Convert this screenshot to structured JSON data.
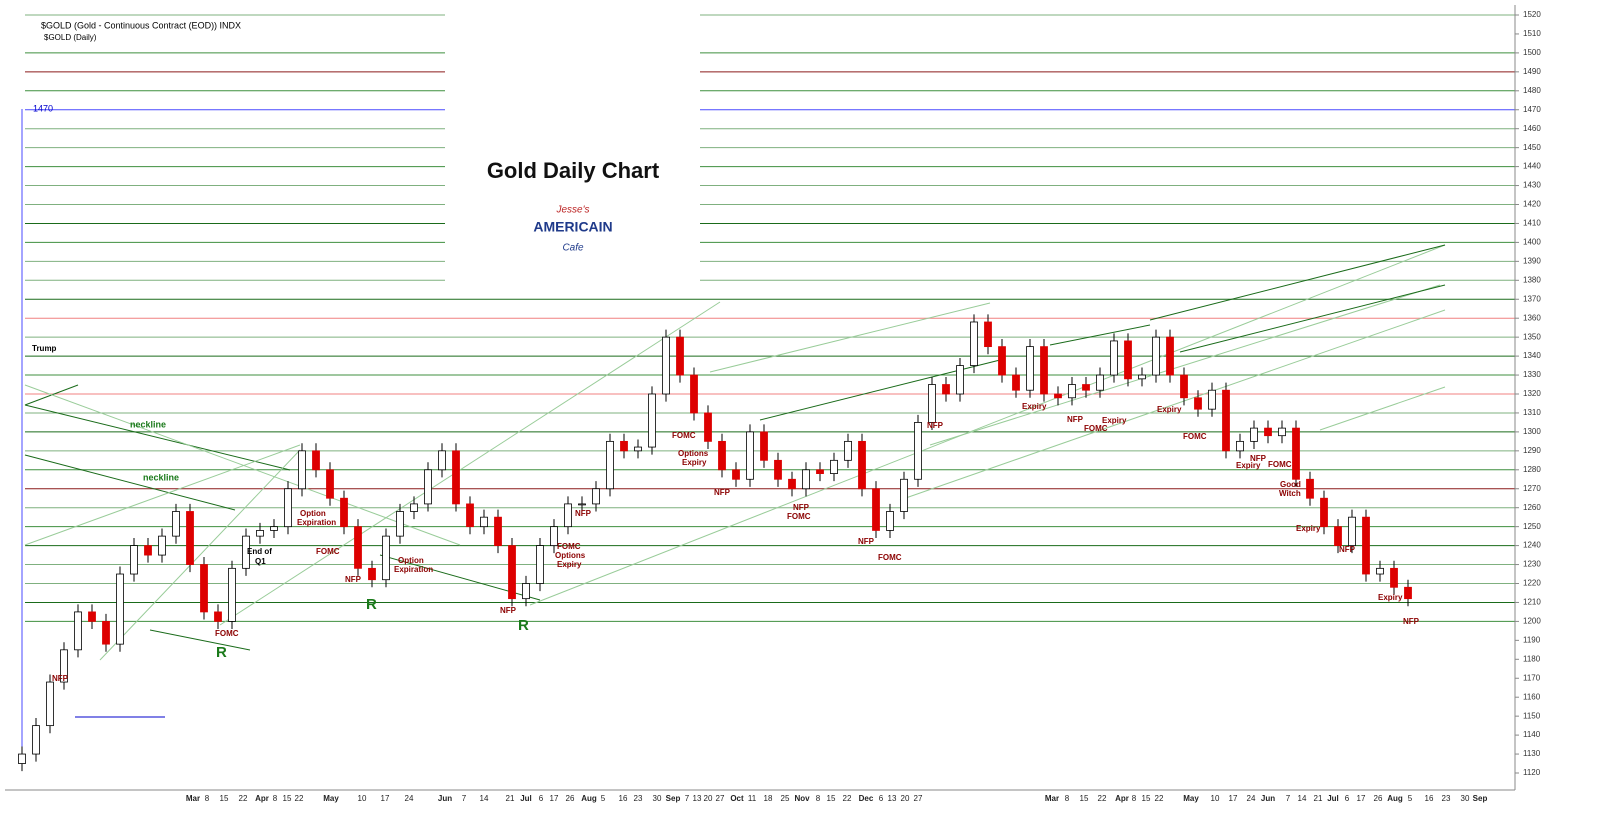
{
  "header": {
    "symbol": "$GOLD (Gold - Continuous Contract (EOD)) INDX",
    "period": "$GOLD (Daily)"
  },
  "logo": {
    "top": "Jesse's",
    "middle": "AMERICAIN",
    "bottom": "Cafe"
  },
  "chart_data": {
    "type": "candlestick",
    "title": "Gold Daily Chart",
    "up_color": "#ffffff",
    "down_color": "#dd0000",
    "ylim": [
      1120,
      1520
    ],
    "yticks": [
      1120,
      1130,
      1140,
      1150,
      1160,
      1170,
      1180,
      1190,
      1200,
      1210,
      1220,
      1230,
      1240,
      1250,
      1260,
      1270,
      1280,
      1290,
      1300,
      1310,
      1320,
      1330,
      1340,
      1350,
      1360,
      1370,
      1380,
      1390,
      1400,
      1410,
      1420,
      1430,
      1440,
      1450,
      1460,
      1470,
      1480,
      1490,
      1500,
      1510,
      1520
    ],
    "levels": [
      1520,
      1500,
      1490,
      1480,
      1470,
      1460,
      1450,
      1440,
      1430,
      1420,
      1410,
      1400,
      1390,
      1380,
      1370,
      1360,
      1350,
      1340,
      1330,
      1320,
      1310,
      1300,
      1290,
      1280,
      1270,
      1260,
      1250,
      1240,
      1230,
      1220,
      1210,
      1200
    ],
    "level_colors": [
      "#7fb07f",
      "#3f8f3f",
      "#8b1a1a",
      "#3f8f3f",
      "#4a4aff",
      "#7fb07f",
      "#7fb07f",
      "#3f8f3f",
      "#7fb07f",
      "#7fb07f",
      "#1a6b1a",
      "#3f8f3f",
      "#7fb07f",
      "#7fb07f",
      "#1a6b1a",
      "#f08080",
      "#7fb07f",
      "#1a6b1a",
      "#3f8f3f",
      "#f08080",
      "#7fb07f",
      "#1a6b1a",
      "#7fb07f",
      "#3f8f3f",
      "#8b1a1a",
      "#7fb07f",
      "#3f8f3f",
      "#1a6b1a",
      "#7fb07f",
      "#7fb07f",
      "#1a6b1a",
      "#3f8f3f"
    ],
    "x_labels": [
      "Mar",
      "8",
      "15",
      "22",
      "Apr",
      "8",
      "15",
      "22",
      "May",
      "10",
      "17",
      "24",
      "Jun",
      "7",
      "14",
      "21",
      "Jul",
      "6",
      "17",
      "26",
      "Aug",
      "5",
      "16",
      "23",
      "30",
      "Sep",
      "7",
      "13",
      "20",
      "27",
      "Oct",
      "11",
      "18",
      "25",
      "Nov",
      "8",
      "15",
      "22",
      "Dec",
      "6",
      "13",
      "20",
      "27",
      "Mar",
      "8",
      "15",
      "22",
      "Apr",
      "8",
      "15",
      "22",
      "May",
      "10",
      "17",
      "24",
      "Jun",
      "7",
      "14",
      "21",
      "Jul",
      "6",
      "17",
      "26",
      "Aug",
      "5",
      "16",
      "23",
      "30",
      "Sep"
    ],
    "open": [
      1125,
      1130,
      1145,
      1168,
      1185,
      1205,
      1200,
      1188,
      1225,
      1240,
      1235,
      1245,
      1258,
      1230,
      1205,
      1200,
      1228,
      1245,
      1248,
      1250,
      1270,
      1290,
      1280,
      1265,
      1250,
      1228,
      1222,
      1245,
      1258,
      1262,
      1280,
      1290,
      1262,
      1250,
      1255,
      1240,
      1212,
      1220,
      1240,
      1250,
      1262,
      1262,
      1270,
      1295,
      1290,
      1292,
      1320,
      1350,
      1330,
      1310,
      1295,
      1280,
      1275,
      1300,
      1285,
      1275,
      1270,
      1280,
      1278,
      1285,
      1295,
      1270,
      1248,
      1258,
      1275,
      1305,
      1325,
      1320,
      1335,
      1358,
      1345,
      1330,
      1322,
      1345,
      1320,
      1318,
      1325,
      1322,
      1330,
      1348,
      1328,
      1330,
      1350,
      1330,
      1318,
      1312,
      1322,
      1290,
      1295,
      1302,
      1298,
      1302,
      1275,
      1265,
      1250,
      1240,
      1255,
      1225,
      1228,
      1218
    ],
    "high": [
      1134,
      1149,
      1172,
      1189,
      1209,
      1209,
      1204,
      1229,
      1244,
      1244,
      1249,
      1262,
      1262,
      1234,
      1209,
      1232,
      1249,
      1252,
      1254,
      1274,
      1294,
      1294,
      1284,
      1269,
      1254,
      1232,
      1249,
      1262,
      1266,
      1284,
      1294,
      1294,
      1266,
      1259,
      1259,
      1244,
      1224,
      1244,
      1254,
      1266,
      1266,
      1274,
      1299,
      1299,
      1296,
      1324,
      1354,
      1354,
      1334,
      1314,
      1299,
      1284,
      1304,
      1304,
      1289,
      1279,
      1284,
      1284,
      1289,
      1299,
      1299,
      1274,
      1262,
      1279,
      1309,
      1329,
      1329,
      1339,
      1362,
      1362,
      1349,
      1334,
      1349,
      1349,
      1324,
      1329,
      1329,
      1334,
      1352,
      1352,
      1334,
      1354,
      1354,
      1334,
      1322,
      1326,
      1326,
      1299,
      1306,
      1306,
      1306,
      1306,
      1279,
      1269,
      1254,
      1259,
      1259,
      1232,
      1232,
      1222
    ],
    "low": [
      1121,
      1126,
      1141,
      1164,
      1181,
      1196,
      1184,
      1184,
      1221,
      1231,
      1231,
      1241,
      1226,
      1201,
      1196,
      1196,
      1224,
      1241,
      1244,
      1246,
      1266,
      1276,
      1261,
      1246,
      1224,
      1218,
      1218,
      1241,
      1254,
      1258,
      1276,
      1258,
      1246,
      1246,
      1236,
      1208,
      1208,
      1216,
      1236,
      1246,
      1258,
      1258,
      1266,
      1286,
      1286,
      1288,
      1316,
      1326,
      1306,
      1291,
      1276,
      1271,
      1271,
      1281,
      1271,
      1266,
      1266,
      1274,
      1274,
      1281,
      1266,
      1244,
      1244,
      1254,
      1271,
      1301,
      1316,
      1316,
      1331,
      1341,
      1326,
      1318,
      1318,
      1316,
      1314,
      1314,
      1318,
      1318,
      1326,
      1324,
      1324,
      1326,
      1326,
      1314,
      1308,
      1308,
      1286,
      1286,
      1291,
      1294,
      1294,
      1271,
      1261,
      1246,
      1236,
      1236,
      1221,
      1221,
      1214,
      1208
    ],
    "close": [
      1130,
      1145,
      1168,
      1185,
      1205,
      1200,
      1188,
      1225,
      1240,
      1235,
      1245,
      1258,
      1230,
      1205,
      1200,
      1228,
      1245,
      1248,
      1250,
      1270,
      1290,
      1280,
      1265,
      1250,
      1228,
      1222,
      1245,
      1258,
      1262,
      1280,
      1290,
      1262,
      1250,
      1255,
      1240,
      1212,
      1220,
      1240,
      1250,
      1262,
      1262,
      1270,
      1295,
      1290,
      1292,
      1320,
      1350,
      1330,
      1310,
      1295,
      1280,
      1275,
      1300,
      1285,
      1275,
      1270,
      1280,
      1278,
      1285,
      1295,
      1270,
      1248,
      1258,
      1275,
      1305,
      1325,
      1320,
      1335,
      1358,
      1345,
      1330,
      1322,
      1345,
      1320,
      1318,
      1325,
      1322,
      1330,
      1348,
      1328,
      1330,
      1350,
      1330,
      1318,
      1312,
      1322,
      1290,
      1295,
      1302,
      1298,
      1302,
      1275,
      1265,
      1250,
      1240,
      1255,
      1225,
      1228,
      1218,
      1212
    ],
    "annotations": [
      "Trump",
      "neckline",
      "neckline",
      "NFP",
      "FOMC",
      "R",
      "End of",
      "Q1",
      "Option",
      "Expiration",
      "FOMC",
      "NFP",
      "R",
      "Option",
      "Expiration",
      "NFP",
      "R",
      "NFP",
      "FOMC",
      "Options",
      "Expiry",
      "FOMC",
      "Options",
      "Expiry",
      "NFP",
      "NFP",
      "FOMC",
      "NFP",
      "FOMC",
      "NFP",
      "Expiry",
      "NFP",
      "FOMC",
      "Expiry",
      "Expiry",
      "FOMC",
      "NFP",
      "Expiry",
      "FOMC",
      "Good",
      "Witch",
      "Expiry",
      "NFP",
      "Expiry",
      "NFP"
    ]
  }
}
